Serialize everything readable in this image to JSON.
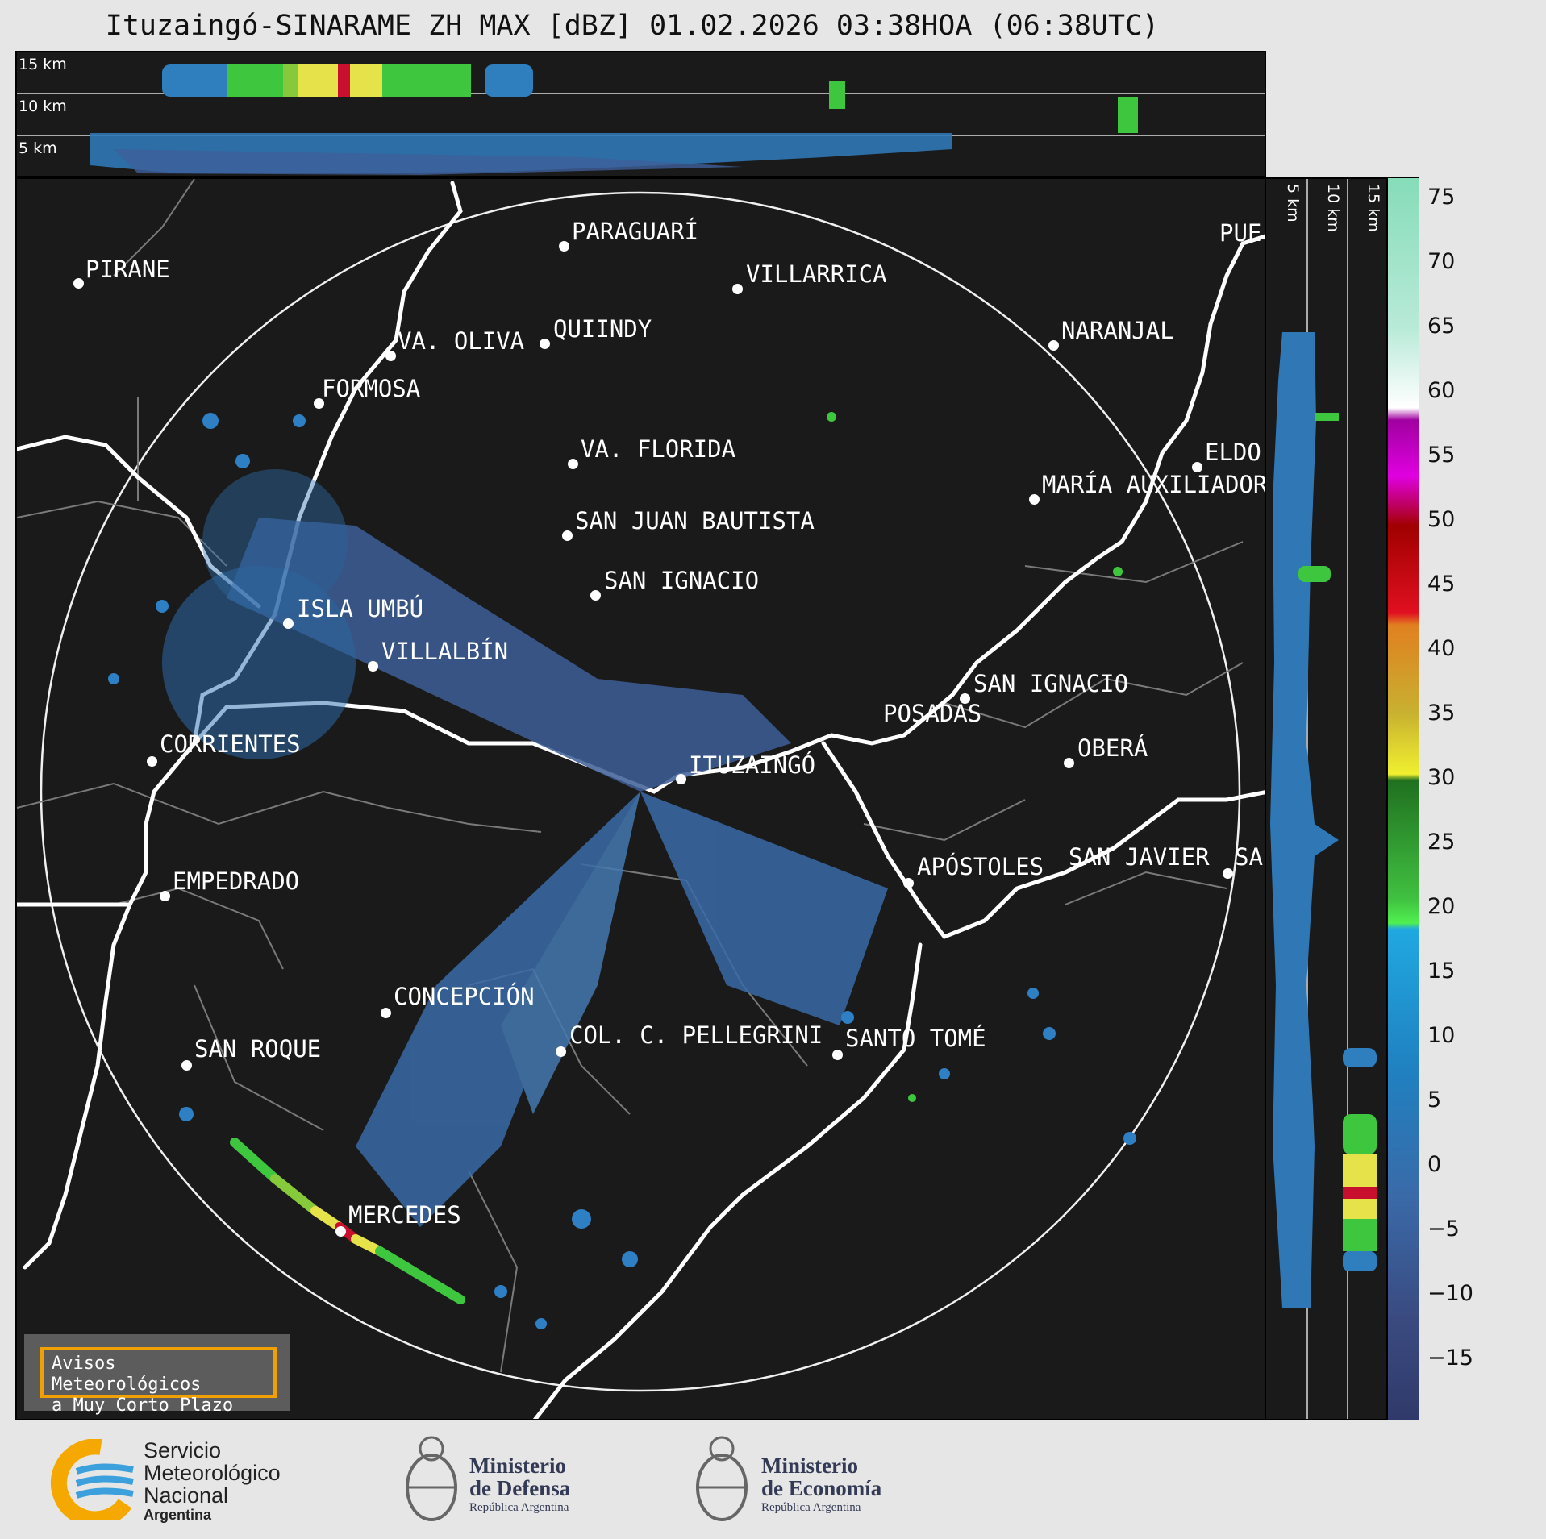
{
  "title": "Ituzaingó-SINARAME ZH MAX [dBZ] 01.02.2026 03:38HOA (06:38UTC)",
  "top_panel": {
    "alt_labels": [
      "15 km",
      "10 km",
      "5 km"
    ]
  },
  "side_panel": {
    "alt_labels": [
      "5 km",
      "10 km",
      "15 km"
    ]
  },
  "colorbar": {
    "unit": "dBZ",
    "ticks": [
      "75",
      "70",
      "65",
      "60",
      "55",
      "50",
      "45",
      "40",
      "35",
      "30",
      "25",
      "20",
      "15",
      "10",
      "5",
      "0",
      "−5",
      "−10",
      "−15"
    ],
    "range": [
      -20,
      77
    ]
  },
  "cities": [
    {
      "name": "PIRANE"
    },
    {
      "name": "PARAGUARÍ"
    },
    {
      "name": "VILLARRICA"
    },
    {
      "name": "QUIINDY"
    },
    {
      "name": "VA. OLIVA"
    },
    {
      "name": "FORMOSA"
    },
    {
      "name": "NARANJAL"
    },
    {
      "name": "PUE"
    },
    {
      "name": "VA. FLORIDA"
    },
    {
      "name": "ELDO"
    },
    {
      "name": "MARÍA AUXILIADOR"
    },
    {
      "name": "SAN JUAN BAUTISTA"
    },
    {
      "name": "SAN IGNACIO"
    },
    {
      "name": "ISLA UMBÚ"
    },
    {
      "name": "VILLALBÍN"
    },
    {
      "name": "SAN IGNACIO"
    },
    {
      "name": "POSADAS"
    },
    {
      "name": "CORRIENTES"
    },
    {
      "name": "ITUZAINGÓ"
    },
    {
      "name": "OBERÁ"
    },
    {
      "name": "EMPEDRADO"
    },
    {
      "name": "APÓSTOLES"
    },
    {
      "name": "SAN JAVIER"
    },
    {
      "name": "SA"
    },
    {
      "name": "CONCEPCIÓN"
    },
    {
      "name": "SAN ROQUE"
    },
    {
      "name": "COL. C. PELLEGRINI"
    },
    {
      "name": "SANTO TOMÉ"
    },
    {
      "name": "MERCEDES"
    }
  ],
  "warning": {
    "line1": "Avisos Meteorológicos",
    "line2": "a Muy Corto Plazo"
  },
  "footer": {
    "smn": [
      "Servicio",
      "Meteorológico",
      "Nacional",
      "Argentina"
    ],
    "defensa": [
      "Ministerio",
      "de Defensa",
      "República Argentina"
    ],
    "economia": [
      "Ministerio",
      "de Economía",
      "República Argentina"
    ]
  },
  "colors": {
    "background": "#e6e6e6",
    "panel": "#1a1a1a",
    "accent_warning": "#f0a000"
  }
}
